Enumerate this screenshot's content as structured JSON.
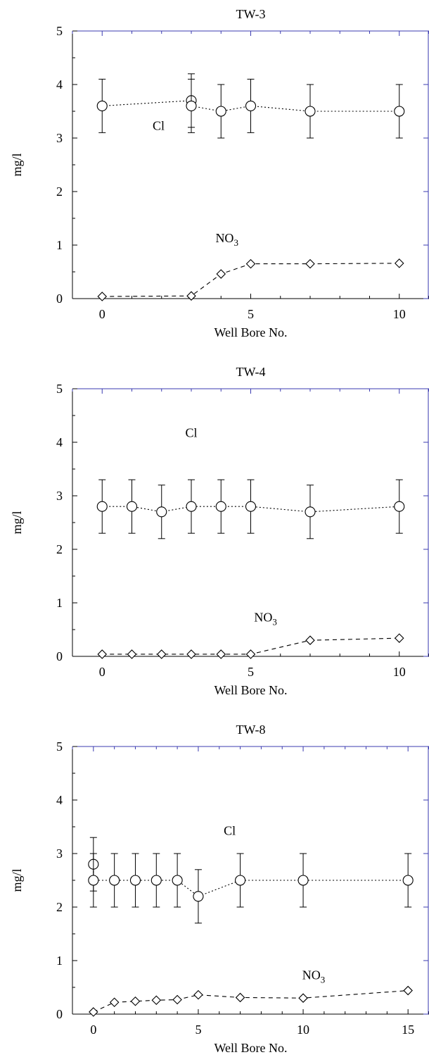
{
  "chart_data": [
    {
      "type": "line",
      "title": "TW-3",
      "xlabel": "Well Bore No.",
      "ylabel": "mg/l",
      "xlim": [
        -1,
        11
      ],
      "ylim": [
        0,
        5
      ],
      "xticks": [
        0,
        5,
        10
      ],
      "yticks": [
        0,
        1,
        2,
        3,
        4,
        5
      ],
      "grid": false,
      "series": [
        {
          "name": "Cl",
          "marker": "circle",
          "linestyle": "dotted",
          "points": [
            {
              "x": 0,
              "y": 3.6,
              "err": 0.5
            },
            {
              "x": 3,
              "y": 3.7,
              "err": 0.5
            },
            {
              "x": 3,
              "y": 3.6,
              "err": 0.5
            },
            {
              "x": 4,
              "y": 3.5,
              "err": 0.5
            },
            {
              "x": 5,
              "y": 3.6,
              "err": 0.5
            },
            {
              "x": 7,
              "y": 3.5,
              "err": 0.5
            },
            {
              "x": 10,
              "y": 3.5,
              "err": 0.5
            }
          ]
        },
        {
          "name": "NO3",
          "name_main": "NO",
          "name_sub": "3",
          "marker": "diamond",
          "linestyle": "dashed",
          "points": [
            {
              "x": 0,
              "y": 0.04
            },
            {
              "x": 3,
              "y": 0.05
            },
            {
              "x": 4,
              "y": 0.46
            },
            {
              "x": 5,
              "y": 0.65
            },
            {
              "x": 7,
              "y": 0.65
            },
            {
              "x": 10,
              "y": 0.66
            }
          ]
        }
      ],
      "annotations": [
        {
          "series": 0,
          "text": "Cl",
          "x": 1.9,
          "y": 3.15
        },
        {
          "series": 1,
          "text": "NO3",
          "x": 4.2,
          "y": 1.05
        }
      ]
    },
    {
      "type": "line",
      "title": "TW-4",
      "xlabel": "Well Bore No.",
      "ylabel": "mg/l",
      "xlim": [
        -1,
        11
      ],
      "ylim": [
        0,
        5
      ],
      "xticks": [
        0,
        5,
        10
      ],
      "yticks": [
        0,
        1,
        2,
        3,
        4,
        5
      ],
      "grid": false,
      "series": [
        {
          "name": "Cl",
          "marker": "circle",
          "linestyle": "dotted",
          "points": [
            {
              "x": 0,
              "y": 2.8,
              "err": 0.5
            },
            {
              "x": 1,
              "y": 2.8,
              "err": 0.5
            },
            {
              "x": 2,
              "y": 2.7,
              "err": 0.5
            },
            {
              "x": 3,
              "y": 2.8,
              "err": 0.5
            },
            {
              "x": 4,
              "y": 2.8,
              "err": 0.5
            },
            {
              "x": 5,
              "y": 2.8,
              "err": 0.5
            },
            {
              "x": 7,
              "y": 2.7,
              "err": 0.5
            },
            {
              "x": 10,
              "y": 2.8,
              "err": 0.5
            }
          ]
        },
        {
          "name": "NO3",
          "name_main": "NO",
          "name_sub": "3",
          "marker": "diamond",
          "linestyle": "dashed",
          "points": [
            {
              "x": 0,
              "y": 0.04
            },
            {
              "x": 1,
              "y": 0.04
            },
            {
              "x": 2,
              "y": 0.04
            },
            {
              "x": 3,
              "y": 0.04
            },
            {
              "x": 4,
              "y": 0.04
            },
            {
              "x": 5,
              "y": 0.04
            },
            {
              "x": 7,
              "y": 0.3
            },
            {
              "x": 10,
              "y": 0.34
            }
          ]
        }
      ],
      "annotations": [
        {
          "series": 0,
          "text": "Cl",
          "x": 3.0,
          "y": 4.1
        },
        {
          "series": 1,
          "text": "NO3",
          "x": 5.5,
          "y": 0.65
        }
      ]
    },
    {
      "type": "line",
      "title": "TW-8",
      "xlabel": "Well Bore No.",
      "ylabel": "mg/l",
      "xlim": [
        -1,
        16
      ],
      "ylim": [
        0,
        5
      ],
      "xticks": [
        0,
        5,
        10,
        15
      ],
      "yticks": [
        0,
        1,
        2,
        3,
        4,
        5
      ],
      "grid": false,
      "series": [
        {
          "name": "Cl",
          "marker": "circle",
          "linestyle": "dotted",
          "points": [
            {
              "x": 0,
              "y": 2.8,
              "err": 0.5
            },
            {
              "x": 0,
              "y": 2.5,
              "err": 0.5
            },
            {
              "x": 1,
              "y": 2.5,
              "err": 0.5
            },
            {
              "x": 2,
              "y": 2.5,
              "err": 0.5
            },
            {
              "x": 3,
              "y": 2.5,
              "err": 0.5
            },
            {
              "x": 4,
              "y": 2.5,
              "err": 0.5
            },
            {
              "x": 5,
              "y": 2.2,
              "err": 0.5
            },
            {
              "x": 7,
              "y": 2.5,
              "err": 0.5
            },
            {
              "x": 10,
              "y": 2.5,
              "err": 0.5
            },
            {
              "x": 15,
              "y": 2.5,
              "err": 0.5
            }
          ]
        },
        {
          "name": "NO3",
          "name_main": "NO",
          "name_sub": "3",
          "marker": "diamond",
          "linestyle": "dashed",
          "points": [
            {
              "x": 0,
              "y": 0.04
            },
            {
              "x": 1,
              "y": 0.22
            },
            {
              "x": 2,
              "y": 0.24
            },
            {
              "x": 3,
              "y": 0.26
            },
            {
              "x": 4,
              "y": 0.27
            },
            {
              "x": 5,
              "y": 0.36
            },
            {
              "x": 7,
              "y": 0.31
            },
            {
              "x": 10,
              "y": 0.3
            },
            {
              "x": 15,
              "y": 0.44
            }
          ]
        }
      ],
      "annotations": [
        {
          "series": 0,
          "text": "Cl",
          "x": 6.5,
          "y": 3.35
        },
        {
          "series": 1,
          "text": "NO3",
          "x": 10.5,
          "y": 0.65
        }
      ]
    }
  ]
}
